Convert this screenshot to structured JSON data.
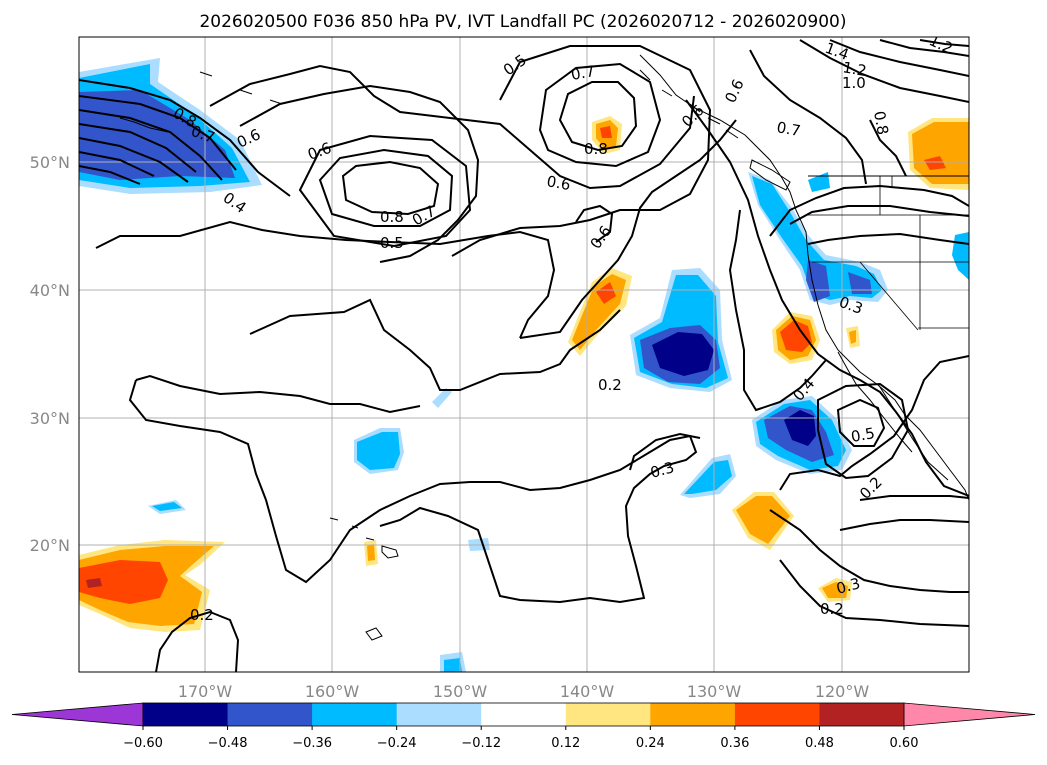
{
  "title": "2026020500 F036 850 hPa PV, IVT Landfall PC (2026020712 - 2026020900)",
  "map": {
    "lat_ticks": [
      "50°N",
      "40°N",
      "30°N",
      "20°N"
    ],
    "lon_ticks": [
      "170°W",
      "160°W",
      "150°W",
      "140°W",
      "130°W",
      "120°W"
    ],
    "extent": {
      "lon": [
        -180,
        -110
      ],
      "lat": [
        10,
        60
      ]
    }
  },
  "colorbar": {
    "colors": [
      "#9c36d6",
      "#000088",
      "#3355cc",
      "#00bbff",
      "#aaddff",
      "#ffffff",
      "#ffe680",
      "#ffa500",
      "#ff4500",
      "#b22222",
      "#ff88aa"
    ],
    "levels": [
      -0.6,
      -0.48,
      -0.36,
      -0.24,
      -0.12,
      0.12,
      0.24,
      0.36,
      0.48,
      0.6
    ],
    "labels": [
      "−0.60",
      "−0.48",
      "−0.36",
      "−0.24",
      "−0.12",
      "0.12",
      "0.24",
      "0.36",
      "0.48",
      "0.60"
    ]
  },
  "contour_labels": [
    "0.8",
    "0.7",
    "0.6",
    "0.4",
    "0.6",
    "0.8",
    "0.7",
    "0.5",
    "0.5",
    "0.7",
    "0.8",
    "0.6",
    "0.6",
    "0.6",
    "0.7",
    "0.6",
    "1.4",
    "1.2",
    "1.0",
    "0.8",
    "1.2",
    "0.3",
    "0.2",
    "0.3",
    "0.4",
    "0.5",
    "0.2",
    "0.3",
    "0.2",
    "0.2"
  ]
}
